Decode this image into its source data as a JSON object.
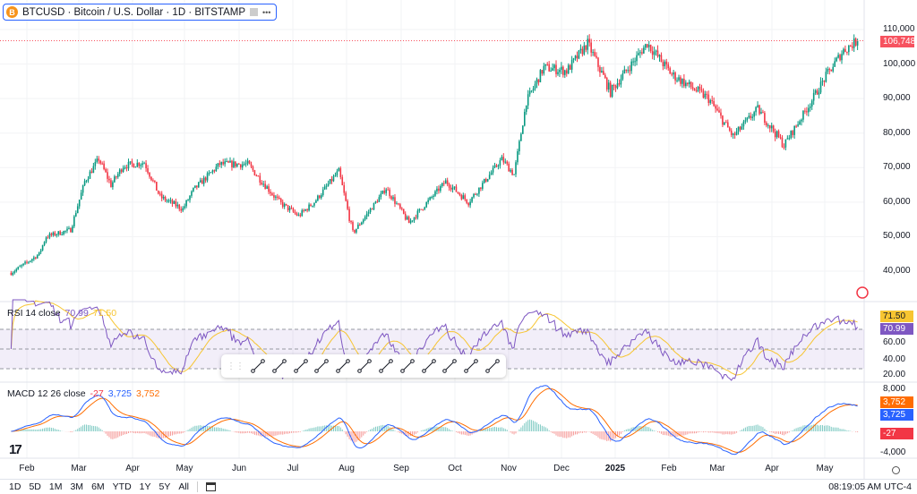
{
  "header": {
    "symbol_icon": "B",
    "title": "BTCUSD · Bitcoin / U.S. Dollar · 1D · BITSTAMP",
    "more_label": "•••"
  },
  "price_axis": {
    "ticks": [
      "110,000",
      "100,000",
      "90,000",
      "80,000",
      "70,000",
      "60,000",
      "50,000",
      "40,000"
    ],
    "last_price": "106,748",
    "last_color": "#f7525f"
  },
  "rsi": {
    "title": "RSI 14 close",
    "value": "70.99",
    "ma_value": "71.50",
    "ticks": [
      "60.00",
      "40.00",
      "20.00"
    ],
    "line_color": "#7e57c2",
    "ma_color": "#f7c531"
  },
  "macd": {
    "title": "MACD 12 26 close",
    "hist": "-27",
    "macd": "3,725",
    "signal": "3,752",
    "ticks": [
      "8,000",
      "-4,000"
    ],
    "macd_color": "#2962ff",
    "signal_color": "#ff6d00"
  },
  "time_axis": [
    "Feb",
    "Mar",
    "Apr",
    "May",
    "Jun",
    "Jul",
    "Aug",
    "Sep",
    "Oct",
    "Nov",
    "Dec",
    "2025",
    "Feb",
    "Mar",
    "Apr",
    "May"
  ],
  "ranges": [
    "1D",
    "5D",
    "1M",
    "3M",
    "6M",
    "YTD",
    "1Y",
    "5Y",
    "All"
  ],
  "clock": "08:19:05 AM UTC-4",
  "toolbar": [
    "drag-handle",
    "trend-line-icon",
    "horizontal-ray-icon",
    "horizontal-line-icon",
    "parallel-channel-icon",
    "fib-retracement-icon",
    "horizontal-lines-icon",
    "vertical-line-icon",
    "rectangle-icon",
    "arrow-icon",
    "rotated-rectangle-icon",
    "price-range-icon",
    "ray-icon"
  ],
  "chart_data": {
    "type": "candlestick",
    "up_color": "#089981",
    "down_color": "#f23645",
    "price_path": [
      [
        "2024-01-23",
        39500
      ],
      [
        "2024-02-01",
        42500
      ],
      [
        "2024-02-08",
        45000
      ],
      [
        "2024-02-12",
        50000
      ],
      [
        "2024-02-26",
        52000
      ],
      [
        "2024-03-05",
        66000
      ],
      [
        "2024-03-13",
        72500
      ],
      [
        "2024-03-20",
        65000
      ],
      [
        "2024-03-27",
        70500
      ],
      [
        "2024-04-08",
        71500
      ],
      [
        "2024-04-17",
        61500
      ],
      [
        "2024-04-30",
        58000
      ],
      [
        "2024-05-06",
        63500
      ],
      [
        "2024-05-21",
        71000
      ],
      [
        "2024-06-06",
        71000
      ],
      [
        "2024-06-24",
        60000
      ],
      [
        "2024-07-05",
        56000
      ],
      [
        "2024-07-14",
        60000
      ],
      [
        "2024-07-28",
        69000
      ],
      [
        "2024-08-05",
        51000
      ],
      [
        "2024-08-24",
        64000
      ],
      [
        "2024-09-06",
        54000
      ],
      [
        "2024-09-27",
        66000
      ],
      [
        "2024-10-10",
        60000
      ],
      [
        "2024-10-29",
        72500
      ],
      [
        "2024-11-05",
        68000
      ],
      [
        "2024-11-12",
        89000
      ],
      [
        "2024-11-22",
        99000
      ],
      [
        "2024-12-05",
        98000
      ],
      [
        "2024-12-17",
        106000
      ],
      [
        "2024-12-30",
        92000
      ],
      [
        "2025-01-20",
        106000
      ],
      [
        "2025-02-03",
        97000
      ],
      [
        "2025-02-24",
        90000
      ],
      [
        "2025-03-10",
        79000
      ],
      [
        "2025-03-24",
        87000
      ],
      [
        "2025-04-08",
        76500
      ],
      [
        "2025-04-21",
        87000
      ],
      [
        "2025-05-02",
        96500
      ],
      [
        "2025-05-12",
        104000
      ],
      [
        "2025-05-20",
        106748
      ]
    ],
    "ylim": [
      35000,
      112000
    ]
  }
}
